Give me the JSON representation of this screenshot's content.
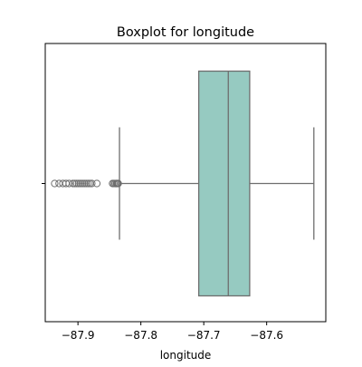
{
  "chart_data": {
    "type": "boxplot",
    "orientation": "horizontal",
    "title": "Boxplot for longitude",
    "xlabel": "longitude",
    "ylabel": "",
    "xlim": [
      -87.952,
      -87.506
    ],
    "x_ticks": [
      -87.9,
      -87.8,
      -87.7,
      -87.6
    ],
    "x_tick_labels": [
      "−87.9",
      "−87.8",
      "−87.7",
      "−87.6"
    ],
    "grid": false,
    "legend": "none",
    "box": {
      "whisker_low": -87.834,
      "q1": -87.708,
      "median": -87.661,
      "q3": -87.627,
      "whisker_high": -87.525
    },
    "outliers": [
      -87.937,
      -87.93,
      -87.924,
      -87.919,
      -87.914,
      -87.908,
      -87.905,
      -87.902,
      -87.899,
      -87.896,
      -87.893,
      -87.89,
      -87.887,
      -87.884,
      -87.881,
      -87.878,
      -87.87,
      -87.845,
      -87.843,
      -87.841,
      -87.839,
      -87.838,
      -87.837,
      -87.836
    ],
    "colors": {
      "box_fill": "#96cac1",
      "line": "#6e6e6e",
      "outlier_edge": "#6e6e6e",
      "frame": "#000000"
    }
  }
}
